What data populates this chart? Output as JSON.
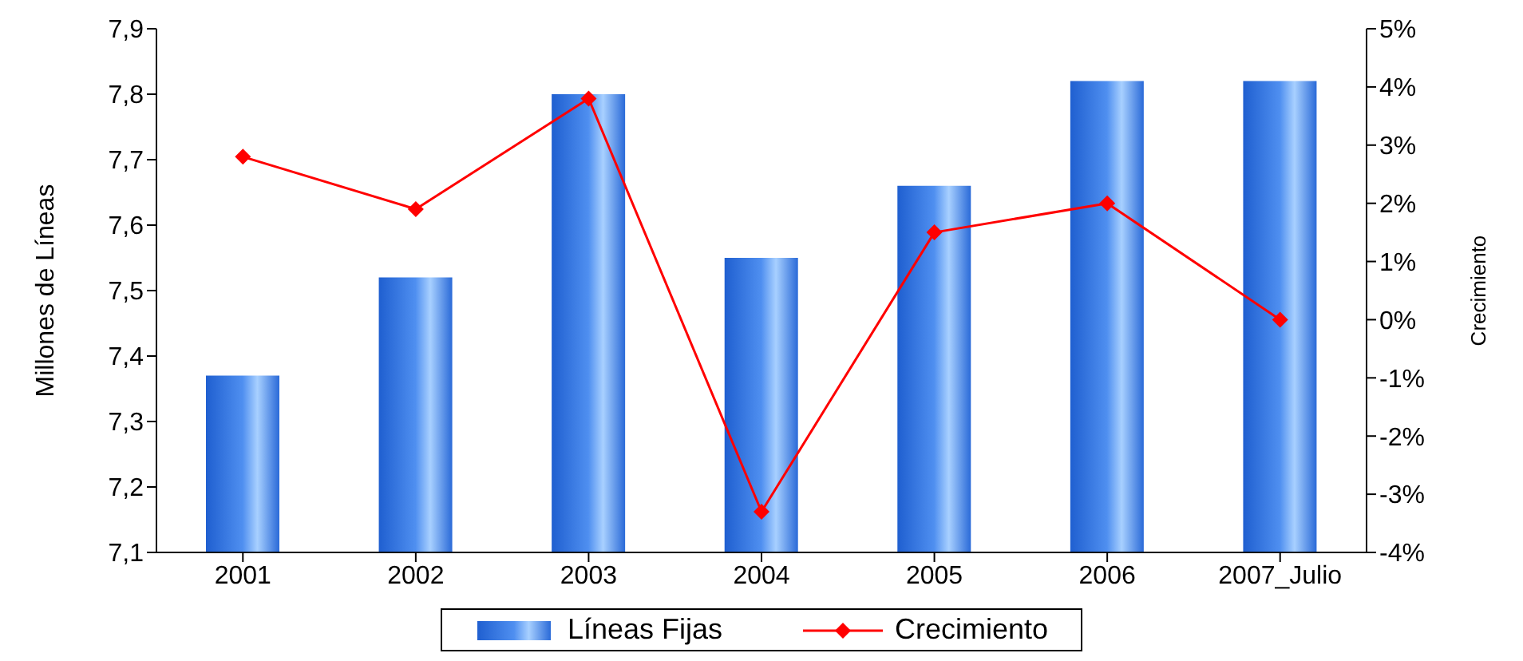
{
  "chart_data": {
    "type": "bar",
    "categories": [
      "2001",
      "2002",
      "2003",
      "2004",
      "2005",
      "2006",
      "2007_Julio"
    ],
    "series": [
      {
        "name": "Líneas Fijas",
        "color": "#4f8ff0",
        "values": [
          7.37,
          7.52,
          7.8,
          7.55,
          7.66,
          7.82,
          7.82
        ]
      },
      {
        "name": "Crecimiento",
        "type": "line",
        "axis": "y2",
        "color": "#ff0000",
        "marker": "diamond",
        "values": [
          2.8,
          1.9,
          3.8,
          -3.3,
          1.5,
          2.0,
          0.0
        ]
      }
    ],
    "ylabel": "Millones de Líneas",
    "y2label": "Crecimiento",
    "ylim": [
      7.1,
      7.9
    ],
    "yticks": [
      {
        "value": 7.1,
        "label": "7,1"
      },
      {
        "value": 7.2,
        "label": "7,2"
      },
      {
        "value": 7.3,
        "label": "7,3"
      },
      {
        "value": 7.4,
        "label": "7,4"
      },
      {
        "value": 7.5,
        "label": "7,5"
      },
      {
        "value": 7.6,
        "label": "7,6"
      },
      {
        "value": 7.7,
        "label": "7,7"
      },
      {
        "value": 7.8,
        "label": "7,8"
      },
      {
        "value": 7.9,
        "label": "7,9"
      }
    ],
    "y2lim": [
      -4,
      5
    ],
    "y2ticks": [
      {
        "value": -4,
        "label": "-4%"
      },
      {
        "value": -3,
        "label": "-3%"
      },
      {
        "value": -2,
        "label": "-2%"
      },
      {
        "value": -1,
        "label": "-1%"
      },
      {
        "value": 0,
        "label": "0%"
      },
      {
        "value": 1,
        "label": "1%"
      },
      {
        "value": 2,
        "label": "2%"
      },
      {
        "value": 3,
        "label": "3%"
      },
      {
        "value": 4,
        "label": "4%"
      },
      {
        "value": 5,
        "label": "5%"
      }
    ],
    "legend": "bottom",
    "grid": false
  }
}
